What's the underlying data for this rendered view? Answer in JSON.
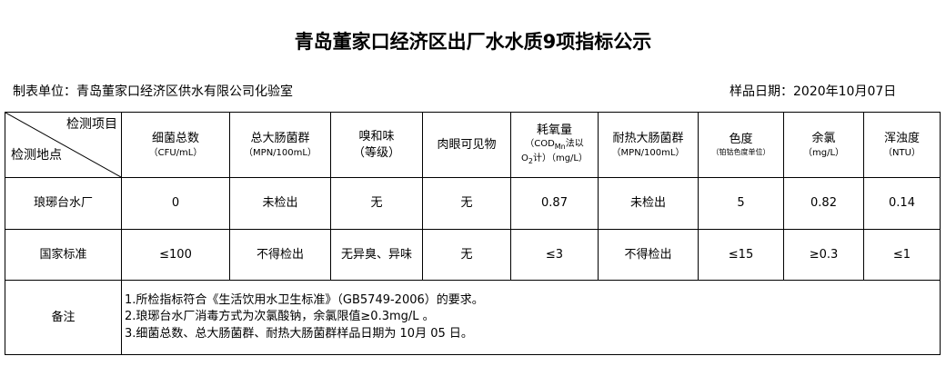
{
  "title": "青岛董家口经济区出厂水水质9项指标公示",
  "unit": "制表单位：青岛董家口经济区供水有限公司化验室",
  "sample_date": "样品日期：2020年10月07日",
  "corner": {
    "item": "检测项目",
    "site": "检测地点"
  },
  "headers": [
    {
      "name": "细菌总数",
      "unit": "（CFU/mL）"
    },
    {
      "name": "总大肠菌群",
      "unit": "（MPN/100mL）"
    },
    {
      "name": "嗅和味",
      "unit": "（等级）"
    },
    {
      "name": "肉眼可见物",
      "unit": ""
    },
    {
      "name": "耗氧量",
      "unit": "（COD",
      "sub": "Mn",
      "unit2": "法以",
      "unit3": "O",
      "sub2": "2",
      "unit4": "计）（mg/L）"
    },
    {
      "name": "耐热大肠菌群",
      "unit": "（MPN/100mL）"
    },
    {
      "name": "色度",
      "unit": "（铂钴色度单位）"
    },
    {
      "name": "余氯",
      "unit": "（mg/L）"
    },
    {
      "name": "浑浊度",
      "unit": "（NTU）"
    }
  ],
  "rows": [
    {
      "site": "琅琊台水厂",
      "values": [
        "0",
        "未检出",
        "无",
        "无",
        "0.87",
        "未检出",
        "5",
        "0.82",
        "0.14"
      ]
    },
    {
      "site": "国家标准",
      "values": [
        "≤100",
        "不得检出",
        "无异臭、异味",
        "无",
        "≤3",
        "不得检出",
        "≤15",
        "≥0.3",
        "≤1"
      ]
    }
  ],
  "remarks": {
    "label": "备注",
    "lines": [
      "1.所检指标符合《生活饮用水卫生标准》（GB5749-2006）的要求。",
      "2.琅琊台水厂消毒方式为次氯酸钠，余氯限值≥0.3mg/L 。",
      "3.细菌总数、总大肠菌群、耐热大肠菌群样品日期为 10月 05 日。"
    ]
  }
}
